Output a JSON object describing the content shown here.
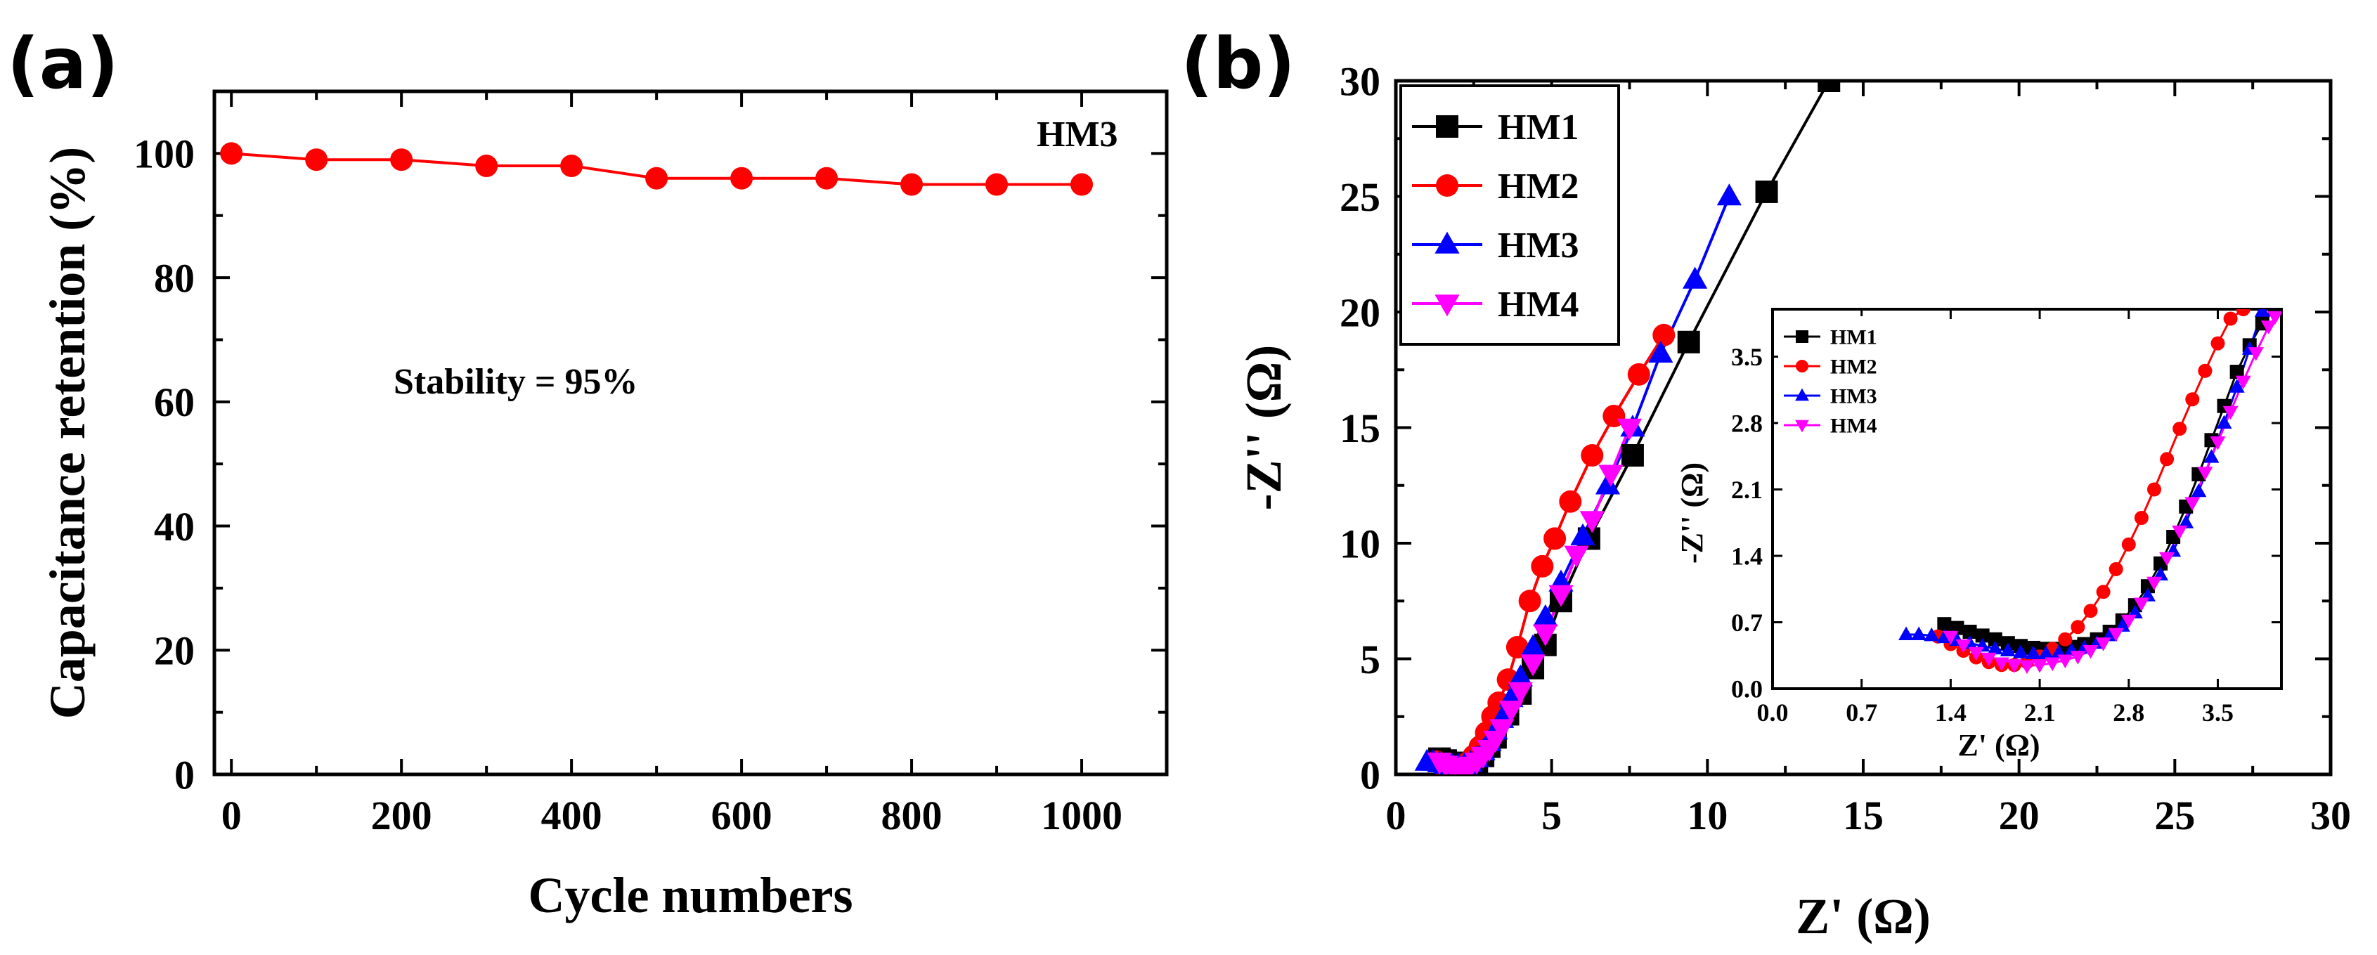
{
  "panels": {
    "a": {
      "label": "(a)"
    },
    "b": {
      "label": "(b)"
    }
  },
  "chart_data": [
    {
      "id": "a",
      "type": "line",
      "title": "",
      "xlabel": "Cycle numbers",
      "ylabel": "Capacitance retention (%)",
      "xlim": [
        -20,
        1100
      ],
      "ylim": [
        0,
        110
      ],
      "xticks": [
        0,
        200,
        400,
        600,
        800,
        1000
      ],
      "yticks": [
        0,
        20,
        40,
        60,
        80,
        100
      ],
      "grid": false,
      "annotations": {
        "series_label": "HM3",
        "stability": "Stability = 95%"
      },
      "series": [
        {
          "color": "#ff0000",
          "marker": "circle",
          "x": [
            0,
            100,
            200,
            300,
            400,
            500,
            600,
            700,
            800,
            900,
            1000
          ],
          "y": [
            100,
            99,
            99,
            98,
            98,
            96,
            96,
            96,
            95,
            95,
            95
          ]
        }
      ]
    },
    {
      "id": "b",
      "type": "line",
      "title": "",
      "xlabel": "Z' (Ω)",
      "ylabel": "-Z'' (Ω)",
      "xlim": [
        0,
        30
      ],
      "ylim": [
        0,
        30
      ],
      "xticks": [
        0,
        5,
        10,
        15,
        20,
        25,
        30
      ],
      "yticks": [
        0,
        5,
        10,
        15,
        20,
        25,
        30
      ],
      "grid": false,
      "legend": "top-left",
      "series": [
        {
          "name": "HM1",
          "color": "#000000",
          "marker": "square",
          "x": [
            1.4,
            1.6,
            1.8,
            2.0,
            2.2,
            2.4,
            2.6,
            2.8,
            3.0,
            3.2,
            3.6,
            4.0,
            4.4,
            4.8,
            5.3,
            6.2,
            7.6,
            9.4,
            11.9,
            13.9
          ],
          "y": [
            0.68,
            0.6,
            0.5,
            0.42,
            0.4,
            0.42,
            0.55,
            0.8,
            1.2,
            1.6,
            2.6,
            3.5,
            4.6,
            5.6,
            7.5,
            10.2,
            13.8,
            18.7,
            25.2,
            30.0
          ]
        },
        {
          "name": "HM2",
          "color": "#ff0000",
          "marker": "circle",
          "x": [
            1.3,
            1.5,
            1.7,
            1.9,
            2.1,
            2.3,
            2.5,
            2.7,
            2.9,
            3.1,
            3.3,
            3.6,
            3.9,
            4.3,
            4.7,
            5.1,
            5.6,
            6.3,
            7.0,
            7.8,
            8.6
          ],
          "y": [
            0.55,
            0.4,
            0.28,
            0.25,
            0.3,
            0.5,
            0.8,
            1.2,
            1.8,
            2.5,
            3.1,
            4.1,
            5.5,
            7.5,
            9.0,
            10.2,
            11.8,
            13.8,
            15.5,
            17.3,
            19.0
          ]
        },
        {
          "name": "HM3",
          "color": "#0000ff",
          "marker": "triangle-up",
          "x": [
            1.0,
            1.2,
            1.4,
            1.6,
            1.8,
            2.0,
            2.2,
            2.4,
            2.6,
            2.8,
            3.0,
            3.2,
            3.4,
            3.7,
            4.0,
            4.4,
            4.8,
            5.3,
            6.0,
            6.8,
            7.6,
            8.5,
            9.6,
            10.7
          ],
          "y": [
            0.55,
            0.55,
            0.48,
            0.42,
            0.38,
            0.38,
            0.4,
            0.5,
            0.7,
            1.0,
            1.4,
            1.9,
            2.4,
            3.3,
            4.2,
            5.5,
            6.8,
            8.3,
            10.3,
            12.5,
            15.0,
            18.2,
            21.4,
            25.0
          ]
        },
        {
          "name": "HM4",
          "color": "#ff00ff",
          "marker": "triangle-down",
          "x": [
            1.4,
            1.6,
            1.8,
            2.0,
            2.2,
            2.4,
            2.6,
            2.8,
            3.0,
            3.2,
            3.4,
            3.7,
            4.0,
            4.4,
            4.8,
            5.3,
            5.8,
            6.3,
            6.9,
            7.5
          ],
          "y": [
            0.55,
            0.42,
            0.32,
            0.28,
            0.3,
            0.38,
            0.55,
            0.8,
            1.1,
            1.5,
            2.0,
            2.8,
            3.6,
            4.8,
            6.1,
            7.8,
            9.5,
            11.0,
            13.0,
            15.0
          ]
        }
      ]
    },
    {
      "id": "b-inset",
      "type": "line",
      "title": "",
      "xlabel": "Z' (Ω)",
      "ylabel": "-Z'' (Ω)",
      "xlim": [
        0,
        4.0
      ],
      "ylim": [
        0,
        4.0
      ],
      "xticks": [
        "0.0",
        "0.7",
        "1.4",
        "2.1",
        "2.8",
        "3.5"
      ],
      "yticks": [
        "0.0",
        "0.7",
        "1.4",
        "2.1",
        "2.8",
        "3.5"
      ],
      "grid": false,
      "legend": "top-left",
      "series": [
        {
          "name": "HM1",
          "color": "#000000",
          "marker": "square",
          "x": [
            1.35,
            1.45,
            1.55,
            1.65,
            1.75,
            1.85,
            1.95,
            2.05,
            2.15,
            2.25,
            2.35,
            2.45,
            2.55,
            2.65,
            2.75,
            2.85,
            2.95,
            3.05,
            3.15,
            3.25,
            3.35,
            3.45,
            3.55,
            3.65,
            3.75,
            3.85,
            3.95
          ],
          "y": [
            0.68,
            0.64,
            0.6,
            0.56,
            0.52,
            0.48,
            0.45,
            0.43,
            0.42,
            0.42,
            0.44,
            0.47,
            0.52,
            0.6,
            0.72,
            0.88,
            1.08,
            1.32,
            1.6,
            1.92,
            2.26,
            2.62,
            2.98,
            3.34,
            3.62,
            3.85,
            4.0
          ]
        },
        {
          "name": "HM2",
          "color": "#ff0000",
          "marker": "circle",
          "x": [
            1.3,
            1.4,
            1.5,
            1.6,
            1.7,
            1.8,
            1.9,
            2.0,
            2.1,
            2.2,
            2.3,
            2.4,
            2.5,
            2.6,
            2.7,
            2.8,
            2.9,
            3.0,
            3.1,
            3.2,
            3.3,
            3.4,
            3.5,
            3.6,
            3.7
          ],
          "y": [
            0.55,
            0.47,
            0.4,
            0.33,
            0.28,
            0.25,
            0.25,
            0.28,
            0.34,
            0.42,
            0.52,
            0.65,
            0.82,
            1.02,
            1.26,
            1.52,
            1.8,
            2.1,
            2.42,
            2.74,
            3.05,
            3.35,
            3.64,
            3.9,
            4.0
          ]
        },
        {
          "name": "HM3",
          "color": "#0000ff",
          "marker": "triangle-up",
          "x": [
            1.05,
            1.15,
            1.25,
            1.35,
            1.45,
            1.55,
            1.65,
            1.75,
            1.85,
            1.95,
            2.05,
            2.15,
            2.25,
            2.35,
            2.45,
            2.55,
            2.65,
            2.75,
            2.85,
            2.95,
            3.05,
            3.15,
            3.25,
            3.35,
            3.45,
            3.55,
            3.65,
            3.75,
            3.85
          ],
          "y": [
            0.57,
            0.57,
            0.56,
            0.54,
            0.51,
            0.48,
            0.45,
            0.42,
            0.4,
            0.38,
            0.37,
            0.37,
            0.38,
            0.4,
            0.43,
            0.48,
            0.56,
            0.66,
            0.8,
            0.98,
            1.2,
            1.45,
            1.75,
            2.08,
            2.44,
            2.8,
            3.18,
            3.58,
            3.98
          ]
        },
        {
          "name": "HM4",
          "color": "#ff00ff",
          "marker": "triangle-down",
          "x": [
            1.4,
            1.5,
            1.6,
            1.7,
            1.8,
            1.9,
            2.0,
            2.1,
            2.2,
            2.3,
            2.4,
            2.5,
            2.6,
            2.7,
            2.8,
            2.9,
            3.0,
            3.1,
            3.2,
            3.3,
            3.4,
            3.5,
            3.6,
            3.7,
            3.8,
            3.9,
            3.95
          ],
          "y": [
            0.55,
            0.46,
            0.38,
            0.32,
            0.27,
            0.25,
            0.24,
            0.25,
            0.27,
            0.3,
            0.34,
            0.4,
            0.48,
            0.58,
            0.72,
            0.9,
            1.12,
            1.38,
            1.66,
            1.96,
            2.28,
            2.6,
            2.92,
            3.24,
            3.54,
            3.82,
            3.92
          ]
        }
      ]
    }
  ]
}
